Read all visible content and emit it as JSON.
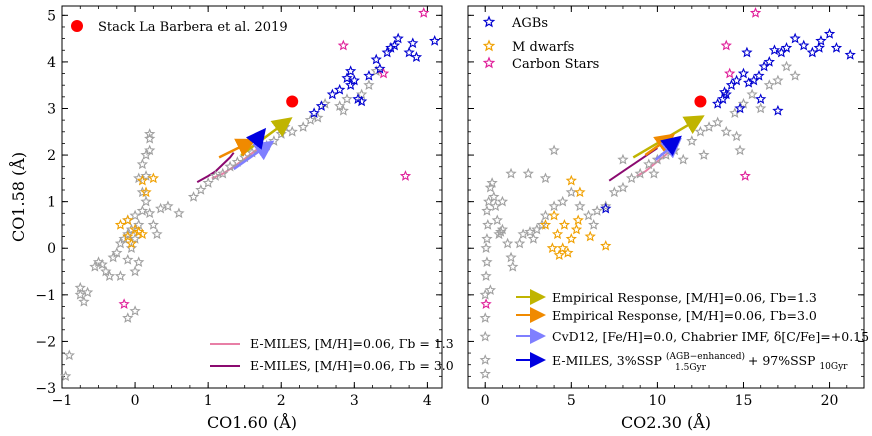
{
  "chart_data": [
    {
      "type": "scatter",
      "xlabel": "CO1.60 (Å)",
      "ylabel": "CO1.58 (Å)",
      "xlim": [
        -1,
        4.2
      ],
      "ylim": [
        -3,
        5.2
      ],
      "xticks": [
        -1,
        0,
        1,
        2,
        3,
        4
      ],
      "xtick_labels": [
        "−1",
        "0",
        "1",
        "2",
        "3",
        "4"
      ],
      "yticks": [
        -3,
        -2,
        -1,
        0,
        1,
        2,
        3,
        4,
        5
      ],
      "ytick_labels": [
        "−3",
        "−2",
        "−1",
        "0",
        "1",
        "2",
        "3",
        "4",
        "5"
      ],
      "stars_gray": [
        [
          -0.95,
          -2.75
        ],
        [
          -0.9,
          -2.3
        ],
        [
          -0.75,
          -1.0
        ],
        [
          -0.75,
          -0.85
        ],
        [
          -0.7,
          -1.15
        ],
        [
          -0.65,
          -0.95
        ],
        [
          -0.55,
          -0.4
        ],
        [
          -0.5,
          -0.3
        ],
        [
          -0.45,
          -0.35
        ],
        [
          -0.4,
          -0.5
        ],
        [
          -0.35,
          -0.6
        ],
        [
          -0.3,
          -0.2
        ],
        [
          -0.25,
          -0.1
        ],
        [
          -0.2,
          0.1
        ],
        [
          -0.15,
          0.2
        ],
        [
          -0.1,
          0.3
        ],
        [
          -0.05,
          0.4
        ],
        [
          -0.1,
          0.6
        ],
        [
          0.0,
          0.7
        ],
        [
          0.05,
          0.5
        ],
        [
          0.0,
          0.2
        ],
        [
          -0.05,
          0.0
        ],
        [
          -0.1,
          -0.25
        ],
        [
          0.05,
          -0.3
        ],
        [
          0.1,
          0.8
        ],
        [
          0.15,
          1.0
        ],
        [
          0.1,
          1.2
        ],
        [
          0.05,
          1.5
        ],
        [
          0.1,
          1.8
        ],
        [
          0.15,
          2.0
        ],
        [
          0.2,
          2.1
        ],
        [
          0.15,
          1.55
        ],
        [
          0.2,
          0.75
        ],
        [
          0.25,
          0.5
        ],
        [
          0.3,
          0.3
        ],
        [
          0.2,
          2.45
        ],
        [
          0.2,
          2.35
        ],
        [
          0.0,
          -0.5
        ],
        [
          -0.2,
          -0.6
        ],
        [
          0.35,
          0.85
        ],
        [
          0.45,
          0.9
        ],
        [
          0.6,
          0.75
        ],
        [
          0.8,
          1.1
        ],
        [
          0.9,
          1.25
        ],
        [
          1.0,
          1.4
        ],
        [
          1.1,
          1.55
        ],
        [
          1.2,
          1.6
        ],
        [
          1.3,
          1.75
        ],
        [
          1.4,
          1.85
        ],
        [
          1.5,
          1.95
        ],
        [
          1.6,
          2.05
        ],
        [
          1.8,
          2.2
        ],
        [
          1.9,
          2.3
        ],
        [
          2.0,
          2.45
        ],
        [
          2.05,
          2.6
        ],
        [
          2.15,
          2.5
        ],
        [
          2.3,
          2.6
        ],
        [
          2.4,
          2.75
        ],
        [
          2.5,
          2.8
        ],
        [
          2.6,
          3.1
        ],
        [
          2.8,
          3.05
        ],
        [
          2.9,
          3.2
        ],
        [
          2.85,
          2.95
        ],
        [
          3.1,
          3.3
        ],
        [
          3.2,
          3.5
        ],
        [
          3.3,
          3.8
        ],
        [
          -0.1,
          -1.5
        ],
        [
          0.0,
          -1.35
        ]
      ],
      "stars_orange": [
        [
          -0.2,
          0.5
        ],
        [
          -0.1,
          0.25
        ],
        [
          -0.05,
          0.1
        ],
        [
          0.0,
          0.4
        ],
        [
          0.05,
          0.35
        ],
        [
          0.1,
          1.45
        ],
        [
          0.15,
          1.2
        ],
        [
          0.25,
          1.5
        ],
        [
          -0.1,
          0.6
        ],
        [
          0.1,
          0.3
        ]
      ],
      "stars_magenta": [
        [
          -0.15,
          -1.2
        ],
        [
          2.85,
          4.35
        ],
        [
          3.4,
          3.75
        ],
        [
          3.95,
          5.05
        ],
        [
          3.7,
          1.55
        ]
      ],
      "stars_blue": [
        [
          2.45,
          2.9
        ],
        [
          2.55,
          3.05
        ],
        [
          2.7,
          3.3
        ],
        [
          2.8,
          3.4
        ],
        [
          2.9,
          3.65
        ],
        [
          2.95,
          3.5
        ],
        [
          3.0,
          3.6
        ],
        [
          3.05,
          3.2
        ],
        [
          3.1,
          3.15
        ],
        [
          3.2,
          3.7
        ],
        [
          3.3,
          4.05
        ],
        [
          3.35,
          3.85
        ],
        [
          3.45,
          4.2
        ],
        [
          3.5,
          4.3
        ],
        [
          3.55,
          4.35
        ],
        [
          3.6,
          4.5
        ],
        [
          3.75,
          4.2
        ],
        [
          3.8,
          4.4
        ],
        [
          3.85,
          4.1
        ],
        [
          4.1,
          4.45
        ],
        [
          2.95,
          3.8
        ]
      ],
      "reference_point": {
        "label": "Stack La Barbera et al. 2019",
        "x": 2.15,
        "y": 3.15
      },
      "arrows": [
        {
          "name": "empirical-1.3",
          "from": [
            1.45,
            2.0
          ],
          "to": [
            2.1,
            2.75
          ]
        },
        {
          "name": "empirical-3.0",
          "from": [
            1.15,
            1.95
          ],
          "to": [
            1.6,
            2.3
          ]
        },
        {
          "name": "cvd12",
          "from": [
            1.35,
            1.7
          ],
          "to": [
            1.85,
            2.25
          ]
        },
        {
          "name": "emiles-mix",
          "from": [
            1.65,
            2.3
          ],
          "to": [
            1.75,
            2.5
          ]
        }
      ],
      "lines": [
        {
          "name": "E-MILES, [M/H]=0.06, Γb = 1.3",
          "color": "#e87fa6",
          "points": [
            [
              1.05,
              1.5
            ],
            [
              1.2,
              1.6
            ],
            [
              1.35,
              1.75
            ],
            [
              1.5,
              1.92
            ],
            [
              1.65,
              2.1
            ],
            [
              1.8,
              2.22
            ]
          ]
        },
        {
          "name": "E-MILES, [M/H]=0.06, Γb = 3.0",
          "color": "#8b0a70",
          "points": [
            [
              0.85,
              1.42
            ],
            [
              1.0,
              1.55
            ],
            [
              1.1,
              1.65
            ],
            [
              1.2,
              1.8
            ],
            [
              1.3,
              1.95
            ],
            [
              1.35,
              2.05
            ]
          ]
        }
      ],
      "legend": [
        {
          "label": "E-MILES, [M/H]=0.06, Γb = 1.3",
          "color": "#e87fa6"
        },
        {
          "label": "E-MILES, [M/H]=0.06, Γb = 3.0",
          "color": "#8b0a70"
        }
      ],
      "legend_top": "Stack La Barbera et al. 2019"
    },
    {
      "type": "scatter",
      "xlabel": "CO2.30 (Å)",
      "xlim": [
        -1,
        22
      ],
      "ylim": [
        -3,
        5.2
      ],
      "xticks": [
        0,
        5,
        10,
        15,
        20
      ],
      "xtick_labels": [
        "0",
        "5",
        "10",
        "15",
        "20"
      ],
      "stars_gray": [
        [
          0,
          -2.7
        ],
        [
          0,
          -2.4
        ],
        [
          0,
          -1.9
        ],
        [
          0,
          -1.5
        ],
        [
          0,
          -1.0
        ],
        [
          0.05,
          -0.6
        ],
        [
          0.1,
          -0.3
        ],
        [
          0.05,
          0.0
        ],
        [
          0.1,
          0.2
        ],
        [
          0.15,
          0.5
        ],
        [
          0.1,
          0.8
        ],
        [
          0.2,
          1.0
        ],
        [
          0.3,
          1.3
        ],
        [
          0.4,
          1.4
        ],
        [
          0.5,
          1.1
        ],
        [
          0.6,
          0.9
        ],
        [
          0.7,
          0.6
        ],
        [
          0.8,
          0.3
        ],
        [
          0.9,
          0.35
        ],
        [
          1.0,
          0.4
        ],
        [
          1.3,
          0.1
        ],
        [
          1.5,
          -0.2
        ],
        [
          1.6,
          -0.4
        ],
        [
          2.0,
          0.1
        ],
        [
          2.2,
          0.3
        ],
        [
          2.6,
          0.35
        ],
        [
          3.0,
          0.4
        ],
        [
          3.5,
          0.7
        ],
        [
          4.0,
          0.9
        ],
        [
          4.5,
          1.0
        ],
        [
          5.0,
          1.2
        ],
        [
          5.5,
          0.9
        ],
        [
          6.0,
          0.7
        ],
        [
          6.5,
          0.8
        ],
        [
          7.0,
          0.9
        ],
        [
          7.5,
          1.2
        ],
        [
          8.0,
          1.3
        ],
        [
          8.5,
          1.5
        ],
        [
          9.0,
          1.6
        ],
        [
          9.5,
          1.8
        ],
        [
          10.0,
          1.9
        ],
        [
          10.5,
          2.0
        ],
        [
          11.0,
          2.1
        ],
        [
          11.5,
          1.9
        ],
        [
          12.0,
          2.3
        ],
        [
          12.5,
          2.5
        ],
        [
          13.0,
          2.6
        ],
        [
          13.5,
          2.7
        ],
        [
          14.0,
          2.5
        ],
        [
          14.5,
          2.9
        ],
        [
          15.0,
          3.1
        ],
        [
          15.5,
          3.3
        ],
        [
          16.0,
          3.0
        ],
        [
          16.5,
          3.5
        ],
        [
          17.0,
          3.6
        ],
        [
          17.5,
          3.9
        ],
        [
          18.0,
          3.7
        ],
        [
          4.0,
          2.1
        ],
        [
          3.5,
          1.5
        ],
        [
          2.5,
          1.6
        ],
        [
          1.5,
          1.6
        ],
        [
          1.0,
          1.0
        ],
        [
          0.3,
          -0.9
        ],
        [
          2.8,
          0.2
        ],
        [
          3.3,
          0.5
        ],
        [
          6.3,
          0.5
        ],
        [
          8.0,
          1.9
        ],
        [
          9.8,
          1.6
        ],
        [
          12.7,
          2.0
        ],
        [
          14.6,
          2.4
        ],
        [
          14.8,
          2.1
        ]
      ],
      "stars_orange": [
        [
          3.5,
          0.5
        ],
        [
          4.0,
          0.7
        ],
        [
          4.2,
          0.3
        ],
        [
          4.5,
          0.0
        ],
        [
          4.8,
          -0.1
        ],
        [
          5.0,
          0.2
        ],
        [
          5.3,
          0.4
        ],
        [
          5.5,
          1.2
        ],
        [
          5.0,
          1.45
        ],
        [
          5.4,
          0.6
        ],
        [
          6.1,
          0.25
        ],
        [
          7.0,
          0.05
        ],
        [
          3.9,
          0.0
        ],
        [
          4.6,
          0.5
        ],
        [
          4.3,
          -0.15
        ]
      ],
      "stars_magenta": [
        [
          0.05,
          -1.2
        ],
        [
          14.0,
          4.35
        ],
        [
          14.2,
          3.75
        ],
        [
          15.7,
          5.05
        ],
        [
          15.1,
          1.55
        ]
      ],
      "stars_blue": [
        [
          7.0,
          0.85
        ],
        [
          13.5,
          3.1
        ],
        [
          13.8,
          3.2
        ],
        [
          14.0,
          3.3
        ],
        [
          14.3,
          3.5
        ],
        [
          14.6,
          3.6
        ],
        [
          15.0,
          3.75
        ],
        [
          15.3,
          3.55
        ],
        [
          15.6,
          3.6
        ],
        [
          15.9,
          3.7
        ],
        [
          16.2,
          3.9
        ],
        [
          16.5,
          4.0
        ],
        [
          16.8,
          4.25
        ],
        [
          17.2,
          4.2
        ],
        [
          17.5,
          4.3
        ],
        [
          18.0,
          4.5
        ],
        [
          18.5,
          4.35
        ],
        [
          19.0,
          4.2
        ],
        [
          19.5,
          4.45
        ],
        [
          20.0,
          4.6
        ],
        [
          20.4,
          4.3
        ],
        [
          21.2,
          4.15
        ],
        [
          14.8,
          3.0
        ],
        [
          13.9,
          3.35
        ],
        [
          15.2,
          4.2
        ],
        [
          19.4,
          4.3
        ],
        [
          16.0,
          3.2
        ],
        [
          17.0,
          2.95
        ]
      ],
      "reference_point": {
        "x": 12.5,
        "y": 3.15
      },
      "arrows": [
        {
          "name": "empirical-1.3",
          "color": "#c0b400",
          "from": [
            8.6,
            1.95
          ],
          "to": [
            12.5,
            2.8
          ]
        },
        {
          "name": "empirical-3.0",
          "color": "#f08a00",
          "from": [
            9.3,
            2.0
          ],
          "to": [
            10.8,
            2.4
          ]
        },
        {
          "name": "cvd12",
          "color": "#7f7fff",
          "from": [
            9.9,
            1.9
          ],
          "to": [
            11.2,
            2.3
          ]
        },
        {
          "name": "emiles-mix",
          "color": "#0000e0",
          "from": [
            10.7,
            2.2
          ],
          "to": [
            11.2,
            2.35
          ]
        }
      ],
      "lines": [
        {
          "color": "#e87fa6",
          "points": [
            [
              8.8,
              1.55
            ],
            [
              9.3,
              1.65
            ],
            [
              9.8,
              1.8
            ],
            [
              10.3,
              1.95
            ],
            [
              10.8,
              2.1
            ],
            [
              11.2,
              2.22
            ]
          ]
        },
        {
          "color": "#8b0a70",
          "points": [
            [
              7.2,
              1.45
            ],
            [
              7.8,
              1.6
            ],
            [
              8.4,
              1.75
            ],
            [
              9.0,
              1.9
            ],
            [
              9.6,
              2.05
            ],
            [
              10.0,
              2.15
            ]
          ]
        }
      ],
      "legend_stars": [
        {
          "label": "AGBs",
          "color": "#0000d0"
        },
        {
          "label": "M dwarfs",
          "color": "#f0a000"
        },
        {
          "label": "Carbon Stars",
          "color": "#e0209a"
        }
      ],
      "legend_arrows": [
        {
          "label": "Empirical Response, [M/H]=0.06, Γb=1.3",
          "color": "#c0b400"
        },
        {
          "label": "Empirical Response, [M/H]=0.06, Γb=3.0",
          "color": "#f08a00"
        },
        {
          "label": "CvD12, [Fe/H]=0.0, Chabrier IMF, δ[C/Fe]=+0.15",
          "color": "#7f7fff"
        },
        {
          "label": "E-MILES, 3%SSP(AGB−enhanced) 1.5Gyr + 97%SSP 10Gyr",
          "color": "#0000e0"
        }
      ],
      "legend_arrow_parts": {
        "emiles_prefix": "E-MILES, 3%SSP",
        "emiles_sup": "(AGB−enhanced)",
        "emiles_sub1": "1.5Gyr",
        "emiles_mid": "+ 97%SSP",
        "emiles_sub2": "10Gyr"
      }
    }
  ],
  "colors": {
    "gray_star": "#a0a0a0",
    "blue_star": "#0000d0",
    "orange_star": "#f0a000",
    "magenta_star": "#e0209a",
    "red_point": "#ff0000"
  }
}
